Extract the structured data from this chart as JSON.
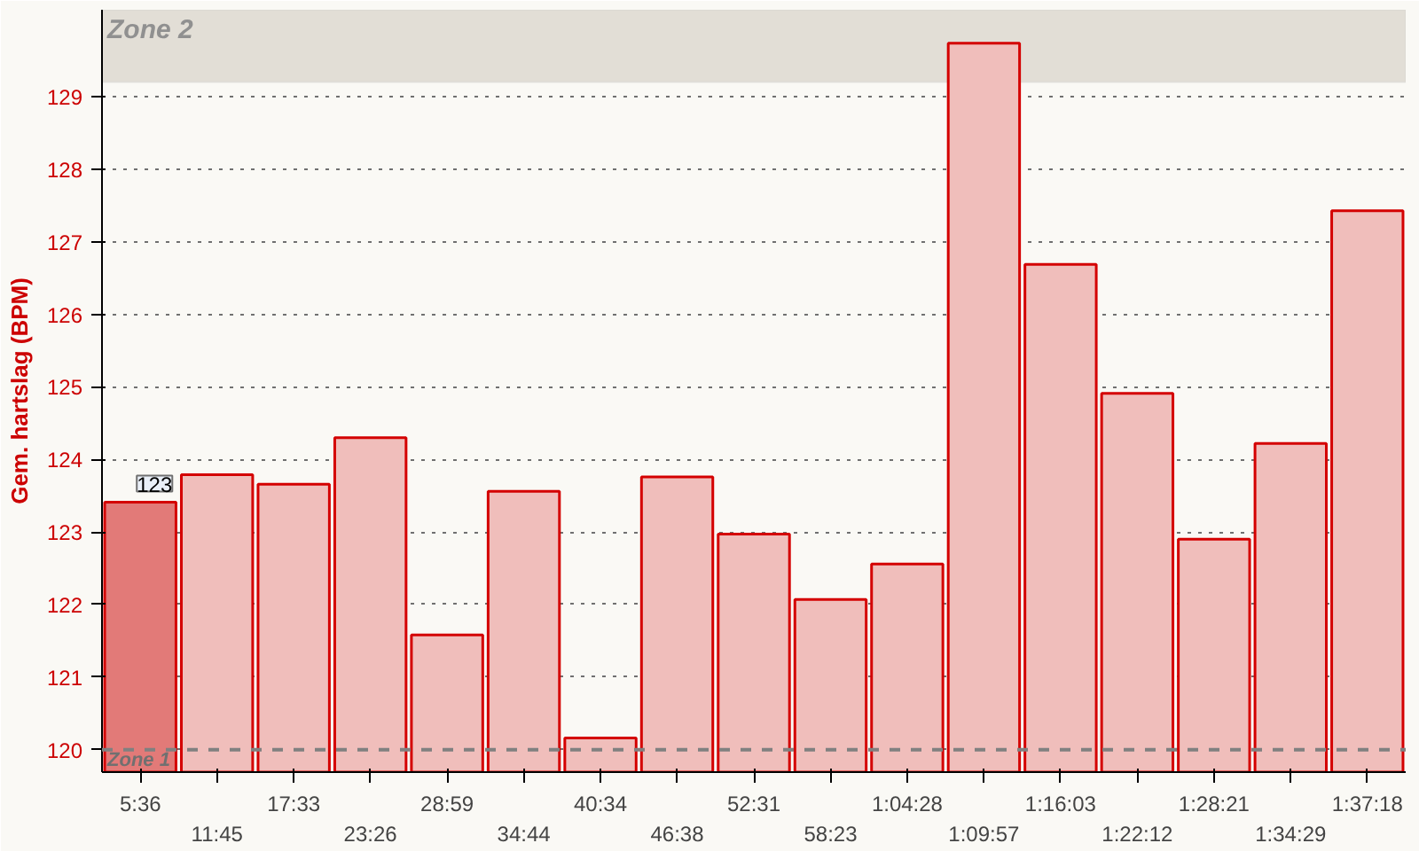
{
  "chart_data": {
    "type": "bar",
    "ylabel": "Gem. hartslag (BPM)",
    "categories": [
      "5:36",
      "11:45",
      "17:33",
      "23:26",
      "28:59",
      "34:44",
      "40:34",
      "46:38",
      "52:31",
      "58:23",
      "1:04:28",
      "1:09:57",
      "1:16:03",
      "1:22:12",
      "1:28:21",
      "1:34:29",
      "1:37:18"
    ],
    "values": [
      123.41,
      123.79,
      123.66,
      124.3,
      121.58,
      123.56,
      120.16,
      123.76,
      122.97,
      122.07,
      122.56,
      129.74,
      126.69,
      124.91,
      122.9,
      124.22,
      127.43
    ],
    "colors": [
      "#e27a78",
      "#f0bebb",
      "#f0bebb",
      "#f0bebb",
      "#f0bebb",
      "#f0bebb",
      "#f0bebb",
      "#f0bebb",
      "#f0bebb",
      "#f0bebb",
      "#f0bebb",
      "#f0bebb",
      "#f0bebb",
      "#f0bebb",
      "#f0bebb",
      "#f0bebb",
      "#f0bebb"
    ],
    "value_labels": [
      "123",
      null,
      null,
      null,
      null,
      null,
      null,
      null,
      null,
      null,
      null,
      null,
      null,
      null,
      null,
      null,
      null
    ],
    "ylim": [
      119.69,
      130.2
    ],
    "yticks": [
      120,
      121,
      122,
      123,
      124,
      125,
      126,
      127,
      128,
      129
    ],
    "grid": "y",
    "ref_lines": [
      {
        "axis": "y",
        "value": 120,
        "label": "Zone 1",
        "color": "#808080",
        "line_style": "dashed"
      }
    ],
    "bands": [
      {
        "axis": "y",
        "from": 129.2,
        "to": 130.2,
        "label": "Zone 2",
        "color": "#e2ded6"
      }
    ]
  }
}
